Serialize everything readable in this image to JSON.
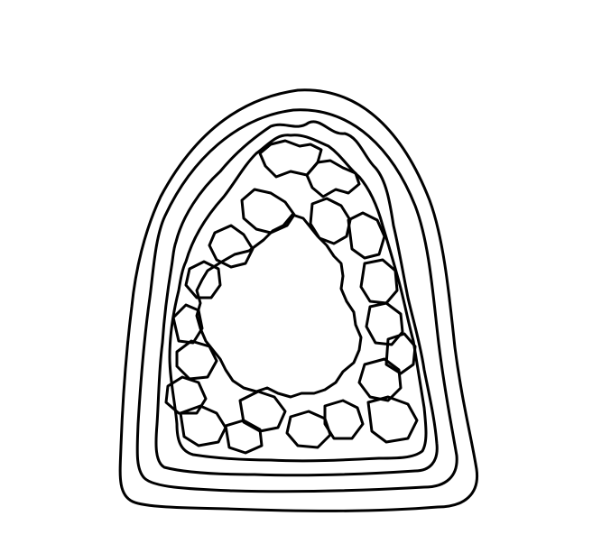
{
  "illustration": {
    "subject": "geode-outline",
    "style": "line-art",
    "colors": {
      "background": "#ffffff",
      "stroke": "#000000"
    },
    "bands": 4,
    "crystal_facets": 18
  }
}
